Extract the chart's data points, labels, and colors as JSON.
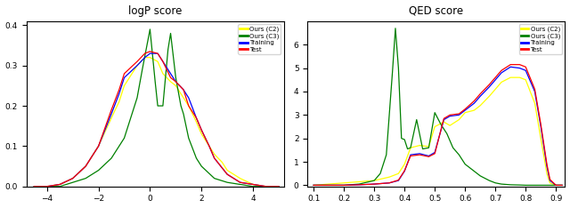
{
  "title_left": "logP score",
  "title_right": "QED score",
  "legend_labels": [
    "Ours (C2)",
    "Ours (C3)",
    "Training",
    "Test"
  ],
  "colors": {
    "ours_c2": "#ffff00",
    "ours_c3": "#008000",
    "training": "#0000ff",
    "test": "#ff0000"
  },
  "logp_xlim": [
    -4.8,
    5.2
  ],
  "logp_ylim": [
    0.0,
    0.41
  ],
  "logp_xticks": [
    -4,
    -2,
    0,
    2,
    4
  ],
  "logp_yticks": [
    0.0,
    0.1,
    0.2,
    0.3,
    0.4
  ],
  "qed_xlim": [
    0.08,
    0.93
  ],
  "qed_ylim": [
    -0.05,
    7.0
  ],
  "qed_xticks": [
    0.1,
    0.2,
    0.3,
    0.4,
    0.5,
    0.6,
    0.7,
    0.8,
    0.9
  ],
  "qed_yticks": [
    0,
    1,
    2,
    3,
    4,
    5,
    6
  ],
  "logp_train": {
    "x": [
      -4.5,
      -4.0,
      -3.5,
      -3.0,
      -2.5,
      -2.0,
      -1.5,
      -1.2,
      -1.0,
      -0.5,
      -0.2,
      0.0,
      0.3,
      0.5,
      0.8,
      1.0,
      1.3,
      1.5,
      1.8,
      2.0,
      2.3,
      2.5,
      3.0,
      3.5,
      4.0,
      4.5,
      5.0
    ],
    "y": [
      0.0,
      0.0,
      0.005,
      0.02,
      0.05,
      0.1,
      0.18,
      0.23,
      0.27,
      0.3,
      0.32,
      0.33,
      0.33,
      0.31,
      0.28,
      0.26,
      0.24,
      0.22,
      0.17,
      0.14,
      0.1,
      0.07,
      0.03,
      0.01,
      0.005,
      0.0,
      0.0
    ]
  },
  "logp_test": {
    "x": [
      -4.5,
      -4.0,
      -3.5,
      -3.0,
      -2.5,
      -2.0,
      -1.5,
      -1.2,
      -1.0,
      -0.5,
      -0.2,
      0.0,
      0.3,
      0.5,
      0.8,
      1.0,
      1.3,
      1.5,
      1.8,
      2.0,
      2.3,
      2.5,
      3.0,
      3.5,
      4.0,
      4.5,
      5.0
    ],
    "y": [
      0.0,
      0.0,
      0.005,
      0.02,
      0.05,
      0.1,
      0.19,
      0.24,
      0.28,
      0.31,
      0.33,
      0.335,
      0.33,
      0.31,
      0.27,
      0.26,
      0.24,
      0.2,
      0.17,
      0.14,
      0.1,
      0.07,
      0.03,
      0.01,
      0.005,
      0.0,
      0.0
    ]
  },
  "logp_c2": {
    "x": [
      -4.5,
      -4.0,
      -3.5,
      -3.0,
      -2.5,
      -2.0,
      -1.5,
      -1.2,
      -1.0,
      -0.7,
      -0.5,
      -0.2,
      0.0,
      0.3,
      0.5,
      0.8,
      1.0,
      1.3,
      1.5,
      1.8,
      2.0,
      2.5,
      2.8,
      3.0,
      3.5,
      4.0,
      4.5,
      5.0
    ],
    "y": [
      0.0,
      0.0,
      0.005,
      0.02,
      0.05,
      0.1,
      0.17,
      0.21,
      0.25,
      0.28,
      0.3,
      0.32,
      0.32,
      0.31,
      0.28,
      0.26,
      0.25,
      0.22,
      0.2,
      0.16,
      0.13,
      0.08,
      0.06,
      0.04,
      0.02,
      0.005,
      0.0,
      0.0
    ]
  },
  "logp_c3": {
    "x": [
      -4.5,
      -3.5,
      -3.0,
      -2.5,
      -2.0,
      -1.5,
      -1.0,
      -0.5,
      -0.3,
      0.0,
      0.2,
      0.3,
      0.5,
      0.7,
      0.8,
      1.0,
      1.2,
      1.3,
      1.5,
      1.8,
      2.0,
      2.5,
      3.0,
      3.5,
      4.0,
      4.5,
      5.0
    ],
    "y": [
      0.0,
      0.0,
      0.01,
      0.02,
      0.04,
      0.07,
      0.12,
      0.22,
      0.29,
      0.39,
      0.26,
      0.2,
      0.2,
      0.34,
      0.38,
      0.27,
      0.2,
      0.18,
      0.12,
      0.07,
      0.05,
      0.02,
      0.01,
      0.005,
      0.0,
      0.0,
      0.0
    ]
  },
  "qed_train": {
    "x": [
      0.1,
      0.15,
      0.2,
      0.25,
      0.3,
      0.35,
      0.38,
      0.4,
      0.42,
      0.45,
      0.48,
      0.5,
      0.53,
      0.55,
      0.58,
      0.6,
      0.63,
      0.65,
      0.68,
      0.7,
      0.72,
      0.75,
      0.78,
      0.8,
      0.83,
      0.85,
      0.87,
      0.88,
      0.9,
      0.92
    ],
    "y": [
      0.0,
      0.0,
      0.0,
      0.02,
      0.05,
      0.1,
      0.2,
      0.6,
      1.3,
      1.35,
      1.25,
      1.4,
      2.8,
      2.95,
      3.0,
      3.2,
      3.5,
      3.8,
      4.2,
      4.5,
      4.8,
      5.05,
      5.0,
      4.9,
      4.0,
      2.5,
      0.8,
      0.2,
      0.0,
      0.0
    ]
  },
  "qed_test": {
    "x": [
      0.1,
      0.15,
      0.2,
      0.25,
      0.3,
      0.35,
      0.38,
      0.4,
      0.42,
      0.45,
      0.48,
      0.5,
      0.53,
      0.55,
      0.58,
      0.6,
      0.63,
      0.65,
      0.68,
      0.7,
      0.72,
      0.75,
      0.78,
      0.8,
      0.83,
      0.85,
      0.87,
      0.88,
      0.9,
      0.92
    ],
    "y": [
      0.0,
      0.0,
      0.0,
      0.02,
      0.05,
      0.1,
      0.22,
      0.62,
      1.25,
      1.3,
      1.22,
      1.35,
      2.85,
      3.0,
      3.05,
      3.25,
      3.6,
      3.9,
      4.3,
      4.6,
      4.9,
      5.15,
      5.15,
      5.05,
      4.1,
      2.6,
      0.9,
      0.25,
      0.0,
      0.0
    ]
  },
  "qed_c2": {
    "x": [
      0.1,
      0.15,
      0.2,
      0.25,
      0.3,
      0.35,
      0.38,
      0.4,
      0.42,
      0.45,
      0.48,
      0.5,
      0.53,
      0.55,
      0.58,
      0.6,
      0.63,
      0.65,
      0.68,
      0.7,
      0.72,
      0.75,
      0.78,
      0.8,
      0.83,
      0.85,
      0.87,
      0.88,
      0.9,
      0.92
    ],
    "y": [
      0.0,
      0.05,
      0.1,
      0.15,
      0.2,
      0.35,
      0.5,
      0.9,
      1.6,
      1.7,
      1.65,
      2.5,
      2.7,
      2.55,
      2.8,
      3.1,
      3.2,
      3.4,
      3.8,
      4.1,
      4.4,
      4.6,
      4.6,
      4.5,
      3.5,
      2.0,
      0.5,
      0.1,
      0.0,
      0.0
    ]
  },
  "qed_c3": {
    "x": [
      0.1,
      0.15,
      0.2,
      0.25,
      0.3,
      0.32,
      0.34,
      0.36,
      0.37,
      0.38,
      0.39,
      0.4,
      0.41,
      0.42,
      0.44,
      0.46,
      0.48,
      0.5,
      0.52,
      0.54,
      0.56,
      0.58,
      0.6,
      0.63,
      0.65,
      0.68,
      0.7,
      0.72,
      0.75,
      0.78,
      0.8,
      0.83,
      0.85,
      0.87,
      0.9,
      0.92
    ],
    "y": [
      0.0,
      0.0,
      0.0,
      0.05,
      0.2,
      0.5,
      1.3,
      4.8,
      6.7,
      5.0,
      2.0,
      1.95,
      1.55,
      1.6,
      2.8,
      1.55,
      1.6,
      3.1,
      2.6,
      2.2,
      1.6,
      1.3,
      0.9,
      0.6,
      0.4,
      0.2,
      0.1,
      0.05,
      0.02,
      0.01,
      0.0,
      0.0,
      0.0,
      0.0,
      0.0,
      0.0
    ]
  }
}
